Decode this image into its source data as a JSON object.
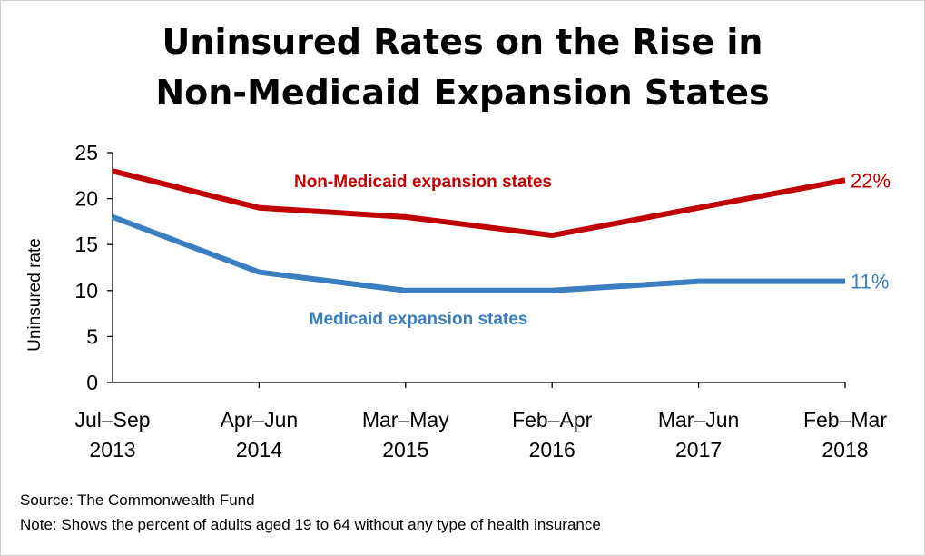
{
  "chart_data": {
    "type": "line",
    "title": [
      "Uninsured Rates on the Rise in",
      "Non-Medicaid Expansion States"
    ],
    "ylabel": "Uninsured rate",
    "xlabel": "",
    "ylim": [
      0,
      25
    ],
    "yticks": [
      0,
      5,
      10,
      15,
      20,
      25
    ],
    "categories": [
      [
        "Jul–Sep",
        "2013"
      ],
      [
        "Apr–Jun",
        "2014"
      ],
      [
        "Mar–May",
        "2015"
      ],
      [
        "Feb–Apr",
        "2016"
      ],
      [
        "Mar–Jun",
        "2017"
      ],
      [
        "Feb–Mar",
        "2018"
      ]
    ],
    "series": [
      {
        "name": "Non-Medicaid expansion states",
        "color": "#c00000",
        "values": [
          23,
          19,
          18,
          16,
          19,
          22
        ],
        "end_label": "22%"
      },
      {
        "name": "Medicaid expansion states",
        "color": "#3a7ebf",
        "values": [
          18,
          12,
          10,
          10,
          11,
          11
        ],
        "end_label": "11%"
      }
    ],
    "grid": false,
    "legend": "inline labels near lines"
  },
  "footer": {
    "source": "Source: The Commonwealth Fund",
    "note": "Note: Shows the percent of adults aged 19 to 64 without any type of health insurance"
  }
}
